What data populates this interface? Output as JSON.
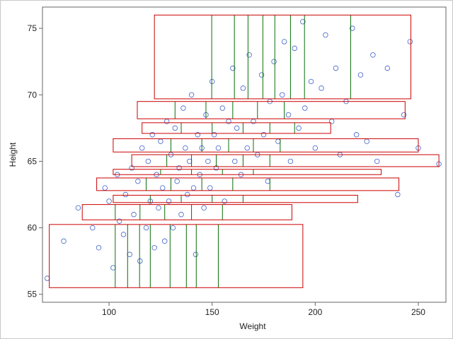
{
  "chart_data": {
    "type": "scatter",
    "x_label": "Weight",
    "y_label": "Height",
    "xlim": [
      67.7,
      263.4
    ],
    "ylim": [
      54.4,
      76.6
    ],
    "xticks": [
      100,
      150,
      200,
      250
    ],
    "yticks": [
      55,
      60,
      65,
      70,
      75
    ],
    "point_color": "#3f62c8",
    "box_color": "#cc0000",
    "split_color": "#0a6e0a",
    "x": [
      70,
      78,
      85,
      92,
      95,
      98,
      100,
      102,
      104,
      105,
      107,
      108,
      110,
      111,
      112,
      114,
      115,
      116,
      118,
      119,
      120,
      121,
      122,
      123,
      124,
      125,
      126,
      127,
      128,
      129,
      130,
      131,
      132,
      133,
      134,
      135,
      136,
      137,
      138,
      139,
      140,
      141,
      142,
      143,
      144,
      145,
      146,
      147,
      148,
      149,
      150,
      151,
      152,
      153,
      155,
      156,
      158,
      160,
      161,
      162,
      164,
      165,
      167,
      168,
      170,
      172,
      174,
      175,
      177,
      178,
      180,
      182,
      184,
      185,
      187,
      188,
      190,
      192,
      194,
      195,
      198,
      200,
      203,
      205,
      208,
      210,
      212,
      215,
      218,
      220,
      222,
      225,
      228,
      230,
      235,
      240,
      243,
      246,
      250,
      260
    ],
    "y": [
      56.2,
      59,
      61.5,
      60,
      58.5,
      63,
      62,
      57,
      64,
      60.5,
      59.5,
      62.5,
      58,
      64.5,
      61,
      63.5,
      57.5,
      66,
      60,
      65,
      62,
      67,
      58.5,
      64,
      61.5,
      66.5,
      63,
      59,
      68,
      62,
      65.5,
      60,
      67.5,
      63.5,
      64.5,
      61,
      69,
      66,
      62.5,
      65,
      70,
      63,
      58,
      67,
      64,
      66,
      61.5,
      68.5,
      65,
      63,
      71,
      67,
      64.5,
      66,
      69,
      62,
      68,
      72,
      65,
      67.5,
      64,
      70.5,
      66,
      73,
      68,
      65.5,
      71.5,
      67,
      63.5,
      69.5,
      72.5,
      66.5,
      70,
      74,
      68.5,
      65,
      73.5,
      67.5,
      75.5,
      69,
      71,
      66,
      70.5,
      74.5,
      68,
      72,
      65.5,
      69.5,
      75,
      67,
      71.5,
      66.5,
      73,
      65,
      72,
      62.5,
      68.5,
      74,
      66,
      64.8
    ],
    "boxes": [
      {
        "x": [
          122,
          246.4
        ],
        "y": [
          69.7,
          76
        ],
        "splits": [
          149.8,
          160.8,
          167.4,
          174.6,
          180.4,
          188,
          194.8,
          217.2
        ]
      },
      {
        "x": [
          113.7,
          243.6
        ],
        "y": [
          68.2,
          69.5
        ],
        "splits": [
          132,
          147,
          160,
          172,
          185
        ]
      },
      {
        "x": [
          116,
          207.5
        ],
        "y": [
          67.1,
          67.9
        ],
        "splits": [
          135,
          150,
          165,
          178,
          190
        ]
      },
      {
        "x": [
          102,
          250
        ],
        "y": [
          65.7,
          66.7
        ],
        "splits": [
          130,
          145,
          158,
          170,
          183
        ]
      },
      {
        "x": [
          111,
          260
        ],
        "y": [
          64.6,
          65.5
        ],
        "splits": [
          128,
          140,
          152,
          165,
          178
        ]
      },
      {
        "x": [
          102,
          232
        ],
        "y": [
          64,
          64.4
        ],
        "splits": [
          125,
          140,
          155,
          170
        ]
      },
      {
        "x": [
          94,
          240.6
        ],
        "y": [
          62.8,
          63.75
        ],
        "splits": [
          118,
          130,
          145,
          160,
          178
        ]
      },
      {
        "x": [
          102,
          220.6
        ],
        "y": [
          61.9,
          62.45
        ],
        "splits": [
          120,
          135,
          150,
          165
        ]
      },
      {
        "x": [
          87,
          188.7
        ],
        "y": [
          60.6,
          61.75
        ],
        "splits": [
          103,
          115,
          127,
          140,
          155
        ]
      },
      {
        "x": [
          71,
          194
        ],
        "y": [
          55.5,
          60.25
        ],
        "splits": [
          103,
          109,
          114.8,
          120,
          129.6,
          137.5,
          142.3,
          153
        ]
      }
    ]
  }
}
